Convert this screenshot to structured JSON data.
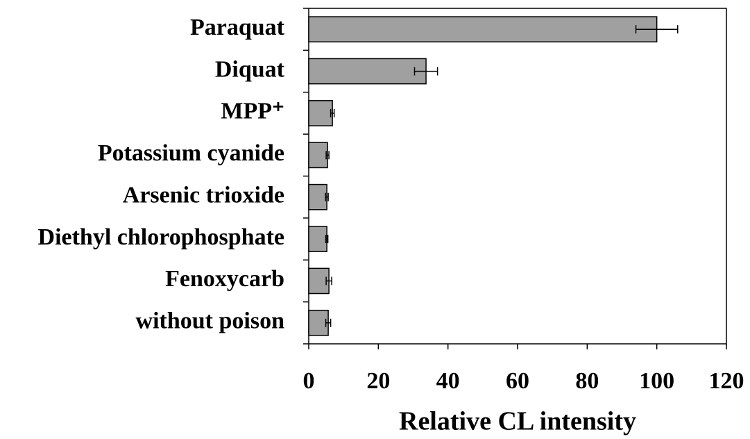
{
  "chart_data": {
    "type": "bar",
    "orientation": "horizontal",
    "categories": [
      "Paraquat",
      "Diquat",
      "MPP⁺",
      "Potassium cyanide",
      "Arsenic trioxide",
      "Diethyl chlorophosphate",
      "Fenoxycarb",
      "without poison"
    ],
    "values": [
      100,
      33.7,
      6.8,
      5.4,
      5.2,
      5.2,
      5.8,
      5.6
    ],
    "errors": [
      6,
      3.3,
      0.5,
      0.4,
      0.4,
      0.3,
      0.8,
      0.7
    ],
    "color": "#a0a0a0",
    "xlabel": "Relative CL intensity",
    "xlim": [
      0,
      120
    ],
    "xticks": [
      0,
      20,
      40,
      60,
      80,
      100,
      120
    ],
    "grid": false
  }
}
